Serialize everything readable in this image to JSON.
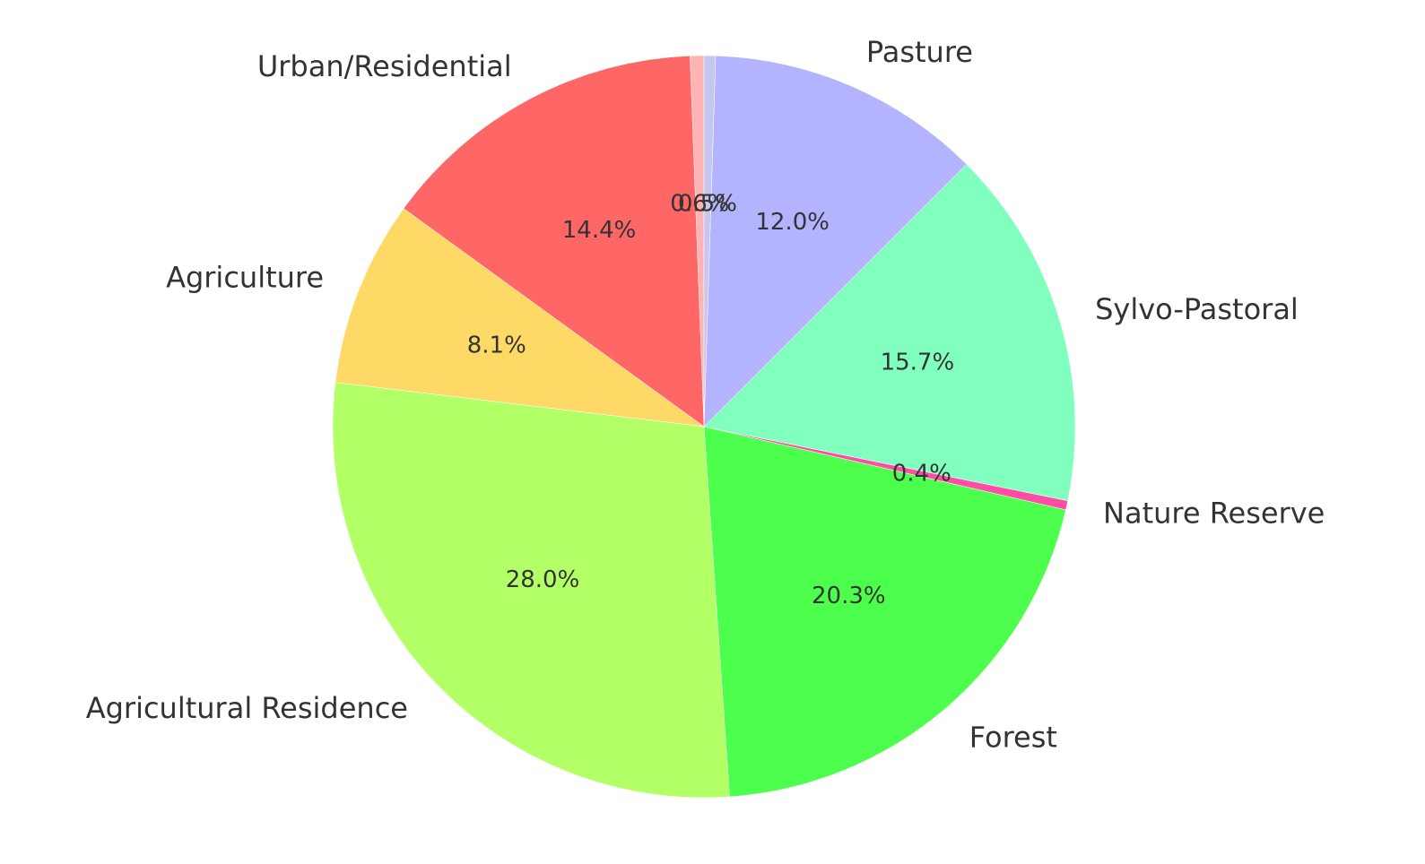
{
  "chart_data": {
    "type": "pie",
    "title": "",
    "start_angle_deg": 90,
    "direction": "counterclockwise",
    "slices": [
      {
        "label": "",
        "pct_label": "0.6%",
        "value": 0.6,
        "color": "#ffb3b3"
      },
      {
        "label": "Urban/Residential",
        "pct_label": "14.4%",
        "value": 14.4,
        "color": "#ff6666"
      },
      {
        "label": "Agriculture",
        "pct_label": "8.1%",
        "value": 8.1,
        "color": "#ffd966"
      },
      {
        "label": "Agricultural Residence",
        "pct_label": "28.0%",
        "value": 28.0,
        "color": "#b3ff66"
      },
      {
        "label": "Forest",
        "pct_label": "20.3%",
        "value": 20.3,
        "color": "#4dff4d"
      },
      {
        "label": "Nature Reserve",
        "pct_label": "0.4%",
        "value": 0.4,
        "color": "#ff4da6"
      },
      {
        "label": "Sylvo-Pastoral",
        "pct_label": "15.7%",
        "value": 15.7,
        "color": "#80ffbf"
      },
      {
        "label": "Pasture",
        "pct_label": "12.0%",
        "value": 12.0,
        "color": "#b3b3ff"
      },
      {
        "label": "",
        "pct_label": "0.5%",
        "value": 0.5,
        "color": "#c6c6f0"
      }
    ]
  }
}
